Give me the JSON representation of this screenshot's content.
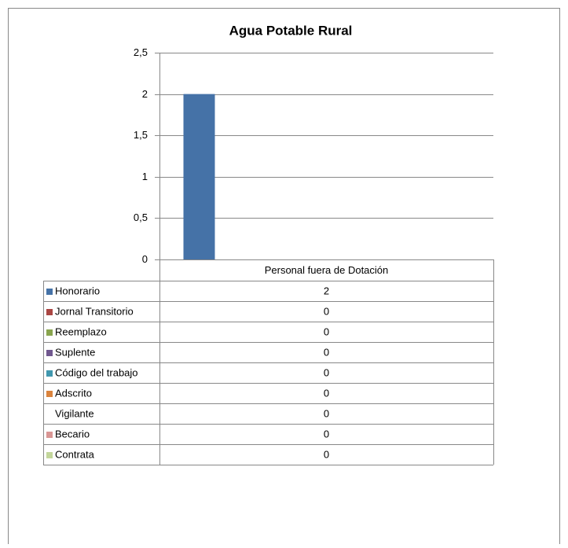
{
  "chart_data": {
    "type": "bar",
    "title": "Agua Potable Rural",
    "categories": [
      "Personal fuera de Dotación"
    ],
    "series": [
      {
        "name": "Honorario",
        "color": "#4572a7",
        "values": [
          2
        ]
      },
      {
        "name": "Jornal Transitorio",
        "color": "#aa4643",
        "values": [
          0
        ]
      },
      {
        "name": "Reemplazo",
        "color": "#89a54e",
        "values": [
          0
        ]
      },
      {
        "name": "Suplente",
        "color": "#71588f",
        "values": [
          0
        ]
      },
      {
        "name": "Código del trabajo",
        "color": "#4198af",
        "values": [
          0
        ]
      },
      {
        "name": "Adscrito",
        "color": "#db843d",
        "values": [
          0
        ]
      },
      {
        "name": "Vigilante",
        "color": "#ffffff",
        "values": [
          0
        ]
      },
      {
        "name": "Becario",
        "color": "#d99694",
        "values": [
          0
        ]
      },
      {
        "name": "Contrata",
        "color": "#c3d69b",
        "values": [
          0
        ]
      }
    ],
    "ylim": [
      0,
      2.5
    ],
    "yticks": [
      0,
      {
        "value": 0.5,
        "label": "0,5"
      },
      1,
      {
        "value": 1.5,
        "label": "1,5"
      },
      2,
      {
        "value": 2.5,
        "label": "2,5"
      }
    ],
    "grid": true,
    "legend": "data-table"
  }
}
